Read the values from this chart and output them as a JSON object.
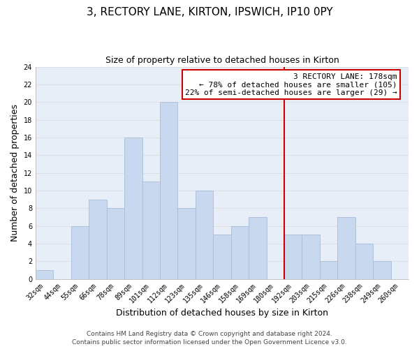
{
  "title": "3, RECTORY LANE, KIRTON, IPSWICH, IP10 0PY",
  "subtitle": "Size of property relative to detached houses in Kirton",
  "xlabel": "Distribution of detached houses by size in Kirton",
  "ylabel": "Number of detached properties",
  "bin_labels": [
    "32sqm",
    "44sqm",
    "55sqm",
    "66sqm",
    "78sqm",
    "89sqm",
    "101sqm",
    "112sqm",
    "123sqm",
    "135sqm",
    "146sqm",
    "158sqm",
    "169sqm",
    "180sqm",
    "192sqm",
    "203sqm",
    "215sqm",
    "226sqm",
    "238sqm",
    "249sqm",
    "260sqm"
  ],
  "bar_values": [
    1,
    0,
    6,
    9,
    8,
    16,
    11,
    20,
    8,
    10,
    5,
    6,
    7,
    0,
    5,
    5,
    2,
    7,
    4,
    2,
    0
  ],
  "bar_color": "#c8d8ee",
  "bar_edge_color": "#a8bcd8",
  "grid_color": "#dddddd",
  "vline_color": "#cc0000",
  "annotation_text": "3 RECTORY LANE: 178sqm\n← 78% of detached houses are smaller (105)\n22% of semi-detached houses are larger (29) →",
  "annotation_box_color": "#ffffff",
  "annotation_box_edge": "#cc0000",
  "ylim": [
    0,
    24
  ],
  "yticks": [
    0,
    2,
    4,
    6,
    8,
    10,
    12,
    14,
    16,
    18,
    20,
    22,
    24
  ],
  "footer": "Contains HM Land Registry data © Crown copyright and database right 2024.\nContains public sector information licensed under the Open Government Licence v3.0.",
  "plot_bg_color": "#e8eef8",
  "title_fontsize": 11,
  "subtitle_fontsize": 9,
  "axis_label_fontsize": 9,
  "tick_fontsize": 7,
  "annotation_fontsize": 8,
  "footer_fontsize": 6.5,
  "vline_bin_index": 13.5
}
